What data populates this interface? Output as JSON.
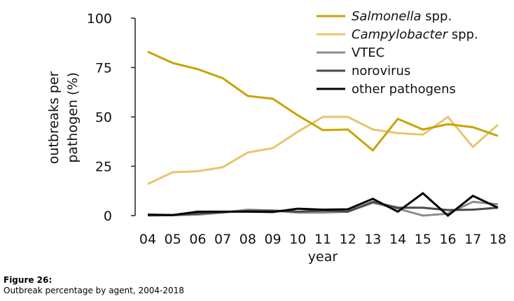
{
  "chart_data": {
    "type": "line",
    "title": "",
    "xlabel": "year",
    "ylabel": "outbreaks per pathogen (%)",
    "ylabel_lines": [
      "outbreaks per",
      "pathogen (%)"
    ],
    "ylim": [
      0,
      100
    ],
    "yticks": [
      0,
      25,
      50,
      75,
      100
    ],
    "x": [
      "04",
      "05",
      "06",
      "07",
      "08",
      "09",
      "10",
      "11",
      "12",
      "13",
      "14",
      "15",
      "16",
      "17",
      "18"
    ],
    "grid": false,
    "legend_position": "top-right",
    "series": [
      {
        "name": "Salmonella",
        "name_suffix": " spp.",
        "italic": true,
        "color": "#C9A300",
        "values": [
          83,
          77.3,
          74.2,
          69.6,
          60.6,
          59.2,
          50.8,
          43.3,
          43.6,
          33,
          49,
          43.6,
          46.3,
          44.8,
          40.4
        ]
      },
      {
        "name": "Campylobacter",
        "name_suffix": " spp.",
        "italic": true,
        "color": "#E8C46E",
        "values": [
          16,
          22,
          22.5,
          24.5,
          32,
          34.2,
          42.5,
          50,
          50,
          43.6,
          41.8,
          41,
          50,
          34.8,
          46
        ]
      },
      {
        "name": "VTEC",
        "name_suffix": "",
        "italic": false,
        "color": "#8C8C8C",
        "values": [
          0,
          0.2,
          0.5,
          1.5,
          3,
          2.5,
          1.5,
          1.5,
          2,
          6.5,
          3.5,
          0,
          1,
          7,
          5.7
        ]
      },
      {
        "name": "norovirus",
        "name_suffix": "",
        "italic": false,
        "color": "#4A4A4A",
        "values": [
          0.3,
          0.3,
          1,
          1.8,
          2.3,
          2.5,
          2,
          2.5,
          2,
          7,
          4,
          4,
          2.8,
          3,
          4
        ]
      },
      {
        "name": "other pathogens",
        "name_suffix": "",
        "italic": false,
        "color": "#000000",
        "values": [
          0.5,
          0.3,
          2,
          2,
          2,
          1.8,
          3.5,
          3,
          3.2,
          8.5,
          2,
          11.3,
          0,
          10,
          4
        ]
      }
    ]
  },
  "caption": {
    "figure_label": "Figure 26:",
    "description": "Outbreak percentage by agent, 2004-2018"
  }
}
